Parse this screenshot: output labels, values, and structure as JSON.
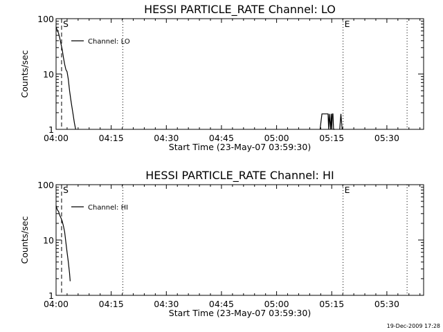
{
  "footer": {
    "timestamp": "19-Dec-2009 17:28"
  },
  "chart_data": [
    {
      "type": "line",
      "title": "HESSI PARTICLE_RATE Channel: LO",
      "xlabel": "Start Time (23-May-07 03:59:30)",
      "ylabel": "Counts/sec",
      "yscale": "log",
      "ylim": [
        1,
        100
      ],
      "xlim_minutes_after_0400": [
        0,
        100
      ],
      "x_tick_labels": [
        "04:00",
        "04:15",
        "04:30",
        "04:45",
        "05:00",
        "05:15",
        "05:30"
      ],
      "y_tick_labels": [
        "1",
        "10",
        "100"
      ],
      "grid": false,
      "legend": {
        "position": "top-left",
        "entries": [
          "Channel: LO"
        ]
      },
      "markers": [
        {
          "label": "S",
          "time": "04:01:30",
          "style": "dashed"
        },
        {
          "label": "",
          "time": "04:18:10",
          "style": "dotted"
        },
        {
          "label": "E",
          "time": "05:18:05",
          "style": "dotted"
        },
        {
          "label": "",
          "time": "05:35:30",
          "style": "dotted"
        }
      ],
      "series": [
        {
          "name": "Channel: LO",
          "segments": [
            {
              "x": [
                "04:00:00",
                "04:00:40",
                "04:01:00",
                "04:01:20",
                "04:01:40",
                "04:02:00",
                "04:02:20",
                "04:02:40",
                "04:03:00",
                "04:03:20",
                "04:03:40",
                "04:04:00",
                "04:04:20",
                "04:04:40",
                "04:05:00",
                "04:05:20"
              ],
              "y": [
                70,
                55,
                45,
                35,
                28,
                20,
                15,
                12,
                11,
                8,
                5,
                3.5,
                2.5,
                1.8,
                1.3,
                1
              ]
            },
            {
              "x": [
                "05:11:50",
                "05:12:20",
                "05:14:00",
                "05:14:10",
                "05:14:20",
                "05:14:40",
                "05:14:50",
                "05:15:00",
                "05:15:10",
                "05:15:20",
                "05:15:30",
                "05:15:40",
                "05:15:50"
              ],
              "y": [
                1,
                1.9,
                1.9,
                1,
                1.9,
                1,
                1.9,
                1,
                1.9,
                1.9,
                1,
                1,
                1
              ]
            },
            {
              "x": [
                "05:17:10",
                "05:17:30",
                "05:17:50"
              ],
              "y": [
                1,
                1.9,
                1
              ]
            }
          ]
        }
      ]
    },
    {
      "type": "line",
      "title": "HESSI PARTICLE_RATE Channel: HI",
      "xlabel": "Start Time (23-May-07 03:59:30)",
      "ylabel": "Counts/sec",
      "yscale": "log",
      "ylim": [
        1,
        100
      ],
      "xlim_minutes_after_0400": [
        0,
        100
      ],
      "x_tick_labels": [
        "04:00",
        "04:15",
        "04:30",
        "04:45",
        "05:00",
        "05:15",
        "05:30"
      ],
      "y_tick_labels": [
        "1",
        "10",
        "100"
      ],
      "grid": false,
      "legend": {
        "position": "top-left",
        "entries": [
          "Channel: HI"
        ]
      },
      "markers": [
        {
          "label": "S",
          "time": "04:01:30",
          "style": "dashed"
        },
        {
          "label": "",
          "time": "04:18:10",
          "style": "dotted"
        },
        {
          "label": "E",
          "time": "05:18:05",
          "style": "dotted"
        },
        {
          "label": "",
          "time": "05:35:30",
          "style": "dotted"
        }
      ],
      "series": [
        {
          "name": "Channel: HI",
          "segments": [
            {
              "x": [
                "04:00:00",
                "04:00:20",
                "04:00:40",
                "04:01:00",
                "04:01:20",
                "04:01:40",
                "04:02:00",
                "04:02:20",
                "04:02:40",
                "04:03:00",
                "04:03:20",
                "04:03:40",
                "04:03:50"
              ],
              "y": [
                42,
                35,
                33,
                28,
                25,
                22,
                18,
                14,
                9,
                6,
                4,
                2.5,
                1.8
              ]
            }
          ]
        }
      ]
    }
  ]
}
